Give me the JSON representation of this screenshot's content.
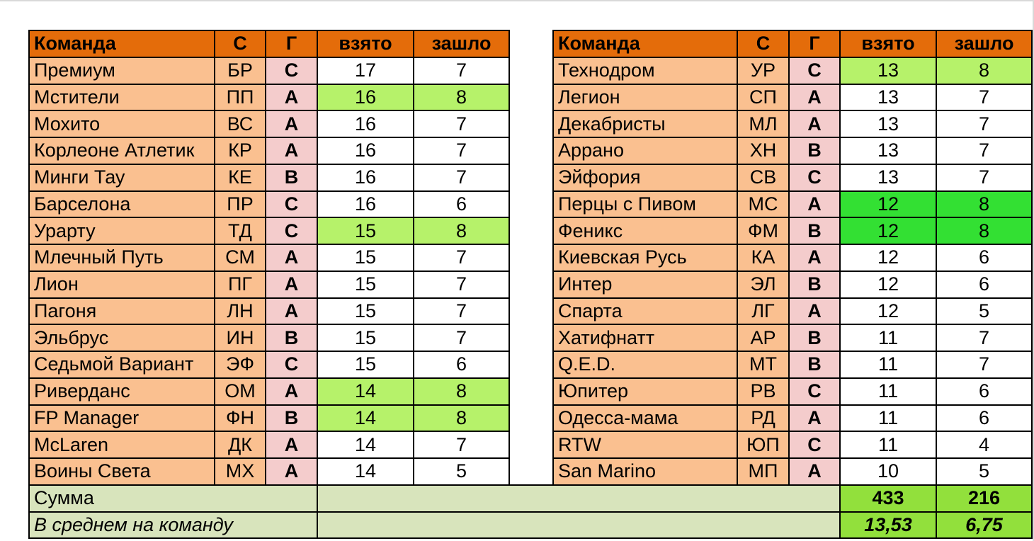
{
  "headers": {
    "team": "Команда",
    "code": "С",
    "group": "Г",
    "taken": "взято",
    "passed": "зашло"
  },
  "left": [
    {
      "team": "Премиум",
      "code": "БР",
      "group": "С",
      "taken": "17",
      "passed": "7",
      "hl": ""
    },
    {
      "team": "Мстители",
      "code": "ПП",
      "group": "А",
      "taken": "16",
      "passed": "8",
      "hl": "lg"
    },
    {
      "team": "Мохито",
      "code": "ВС",
      "group": "А",
      "taken": "16",
      "passed": "7",
      "hl": ""
    },
    {
      "team": "Корлеоне Атлетик",
      "code": "КР",
      "group": "А",
      "taken": "16",
      "passed": "7",
      "hl": ""
    },
    {
      "team": "Минги Тау",
      "code": "КЕ",
      "group": "В",
      "taken": "16",
      "passed": "7",
      "hl": ""
    },
    {
      "team": "Барселона",
      "code": "ПР",
      "group": "С",
      "taken": "16",
      "passed": "6",
      "hl": ""
    },
    {
      "team": "Урарту",
      "code": "ТД",
      "group": "С",
      "taken": "15",
      "passed": "8",
      "hl": "lg"
    },
    {
      "team": "Млечный Путь",
      "code": "СМ",
      "group": "А",
      "taken": "15",
      "passed": "7",
      "hl": ""
    },
    {
      "team": "Лион",
      "code": "ПГ",
      "group": "А",
      "taken": "15",
      "passed": "7",
      "hl": ""
    },
    {
      "team": "Пагоня",
      "code": "ЛН",
      "group": "А",
      "taken": "15",
      "passed": "7",
      "hl": ""
    },
    {
      "team": "Эльбрус",
      "code": "ИН",
      "group": "В",
      "taken": "15",
      "passed": "7",
      "hl": ""
    },
    {
      "team": "Седьмой Вариант",
      "code": "ЭФ",
      "group": "С",
      "taken": "15",
      "passed": "6",
      "hl": ""
    },
    {
      "team": "Риверданс",
      "code": "ОМ",
      "group": "А",
      "taken": "14",
      "passed": "8",
      "hl": "lg"
    },
    {
      "team": "FP Manager",
      "code": "ФН",
      "group": "В",
      "taken": "14",
      "passed": "8",
      "hl": "lg"
    },
    {
      "team": "McLaren",
      "code": "ДК",
      "group": "А",
      "taken": "14",
      "passed": "7",
      "hl": ""
    },
    {
      "team": "Воины Света",
      "code": "МХ",
      "group": "А",
      "taken": "14",
      "passed": "5",
      "hl": ""
    }
  ],
  "right": [
    {
      "team": "Технодром",
      "code": "УР",
      "group": "С",
      "taken": "13",
      "passed": "8",
      "hl": "lg"
    },
    {
      "team": "Легион",
      "code": "СП",
      "group": "А",
      "taken": "13",
      "passed": "7",
      "hl": ""
    },
    {
      "team": "Декабристы",
      "code": "МЛ",
      "group": "А",
      "taken": "13",
      "passed": "7",
      "hl": ""
    },
    {
      "team": "Аррано",
      "code": "ХН",
      "group": "В",
      "taken": "13",
      "passed": "7",
      "hl": ""
    },
    {
      "team": "Эйфория",
      "code": "СВ",
      "group": "С",
      "taken": "13",
      "passed": "7",
      "hl": ""
    },
    {
      "team": "Перцы с Пивом",
      "code": "МС",
      "group": "А",
      "taken": "12",
      "passed": "8",
      "hl": "bg"
    },
    {
      "team": "Феникс",
      "code": "ФМ",
      "group": "В",
      "taken": "12",
      "passed": "8",
      "hl": "bg"
    },
    {
      "team": "Киевская Русь",
      "code": "КА",
      "group": "А",
      "taken": "12",
      "passed": "6",
      "hl": ""
    },
    {
      "team": "Интер",
      "code": "ЭЛ",
      "group": "В",
      "taken": "12",
      "passed": "6",
      "hl": ""
    },
    {
      "team": "Спарта",
      "code": "ЛГ",
      "group": "А",
      "taken": "12",
      "passed": "5",
      "hl": ""
    },
    {
      "team": "Хатифнатт",
      "code": "АР",
      "group": "В",
      "taken": "11",
      "passed": "7",
      "hl": ""
    },
    {
      "team": "Q.E.D.",
      "code": "МТ",
      "group": "В",
      "taken": "11",
      "passed": "7",
      "hl": ""
    },
    {
      "team": "Юпитер",
      "code": "РВ",
      "group": "С",
      "taken": "11",
      "passed": "6",
      "hl": ""
    },
    {
      "team": "Одесса-мама",
      "code": "РД",
      "group": "А",
      "taken": "11",
      "passed": "6",
      "hl": ""
    },
    {
      "team": "RTW",
      "code": "ЮП",
      "group": "С",
      "taken": "11",
      "passed": "4",
      "hl": ""
    },
    {
      "team": "San Marino",
      "code": "МП",
      "group": "А",
      "taken": "10",
      "passed": "5",
      "hl": ""
    }
  ],
  "footer": {
    "sum_label": "Сумма",
    "sum_taken": "433",
    "sum_passed": "216",
    "avg_label": "В среднем на команду",
    "avg_taken": "13,53",
    "avg_passed": "6,75"
  },
  "colors": {
    "header": "#e46c0a",
    "team_bg": "#fac090",
    "group_bg": "#f4cccc",
    "light_green": "#b6f26a",
    "bright_green": "#33e033",
    "footer_bg": "#d8e4bc",
    "footer_value": "#92e03c"
  }
}
